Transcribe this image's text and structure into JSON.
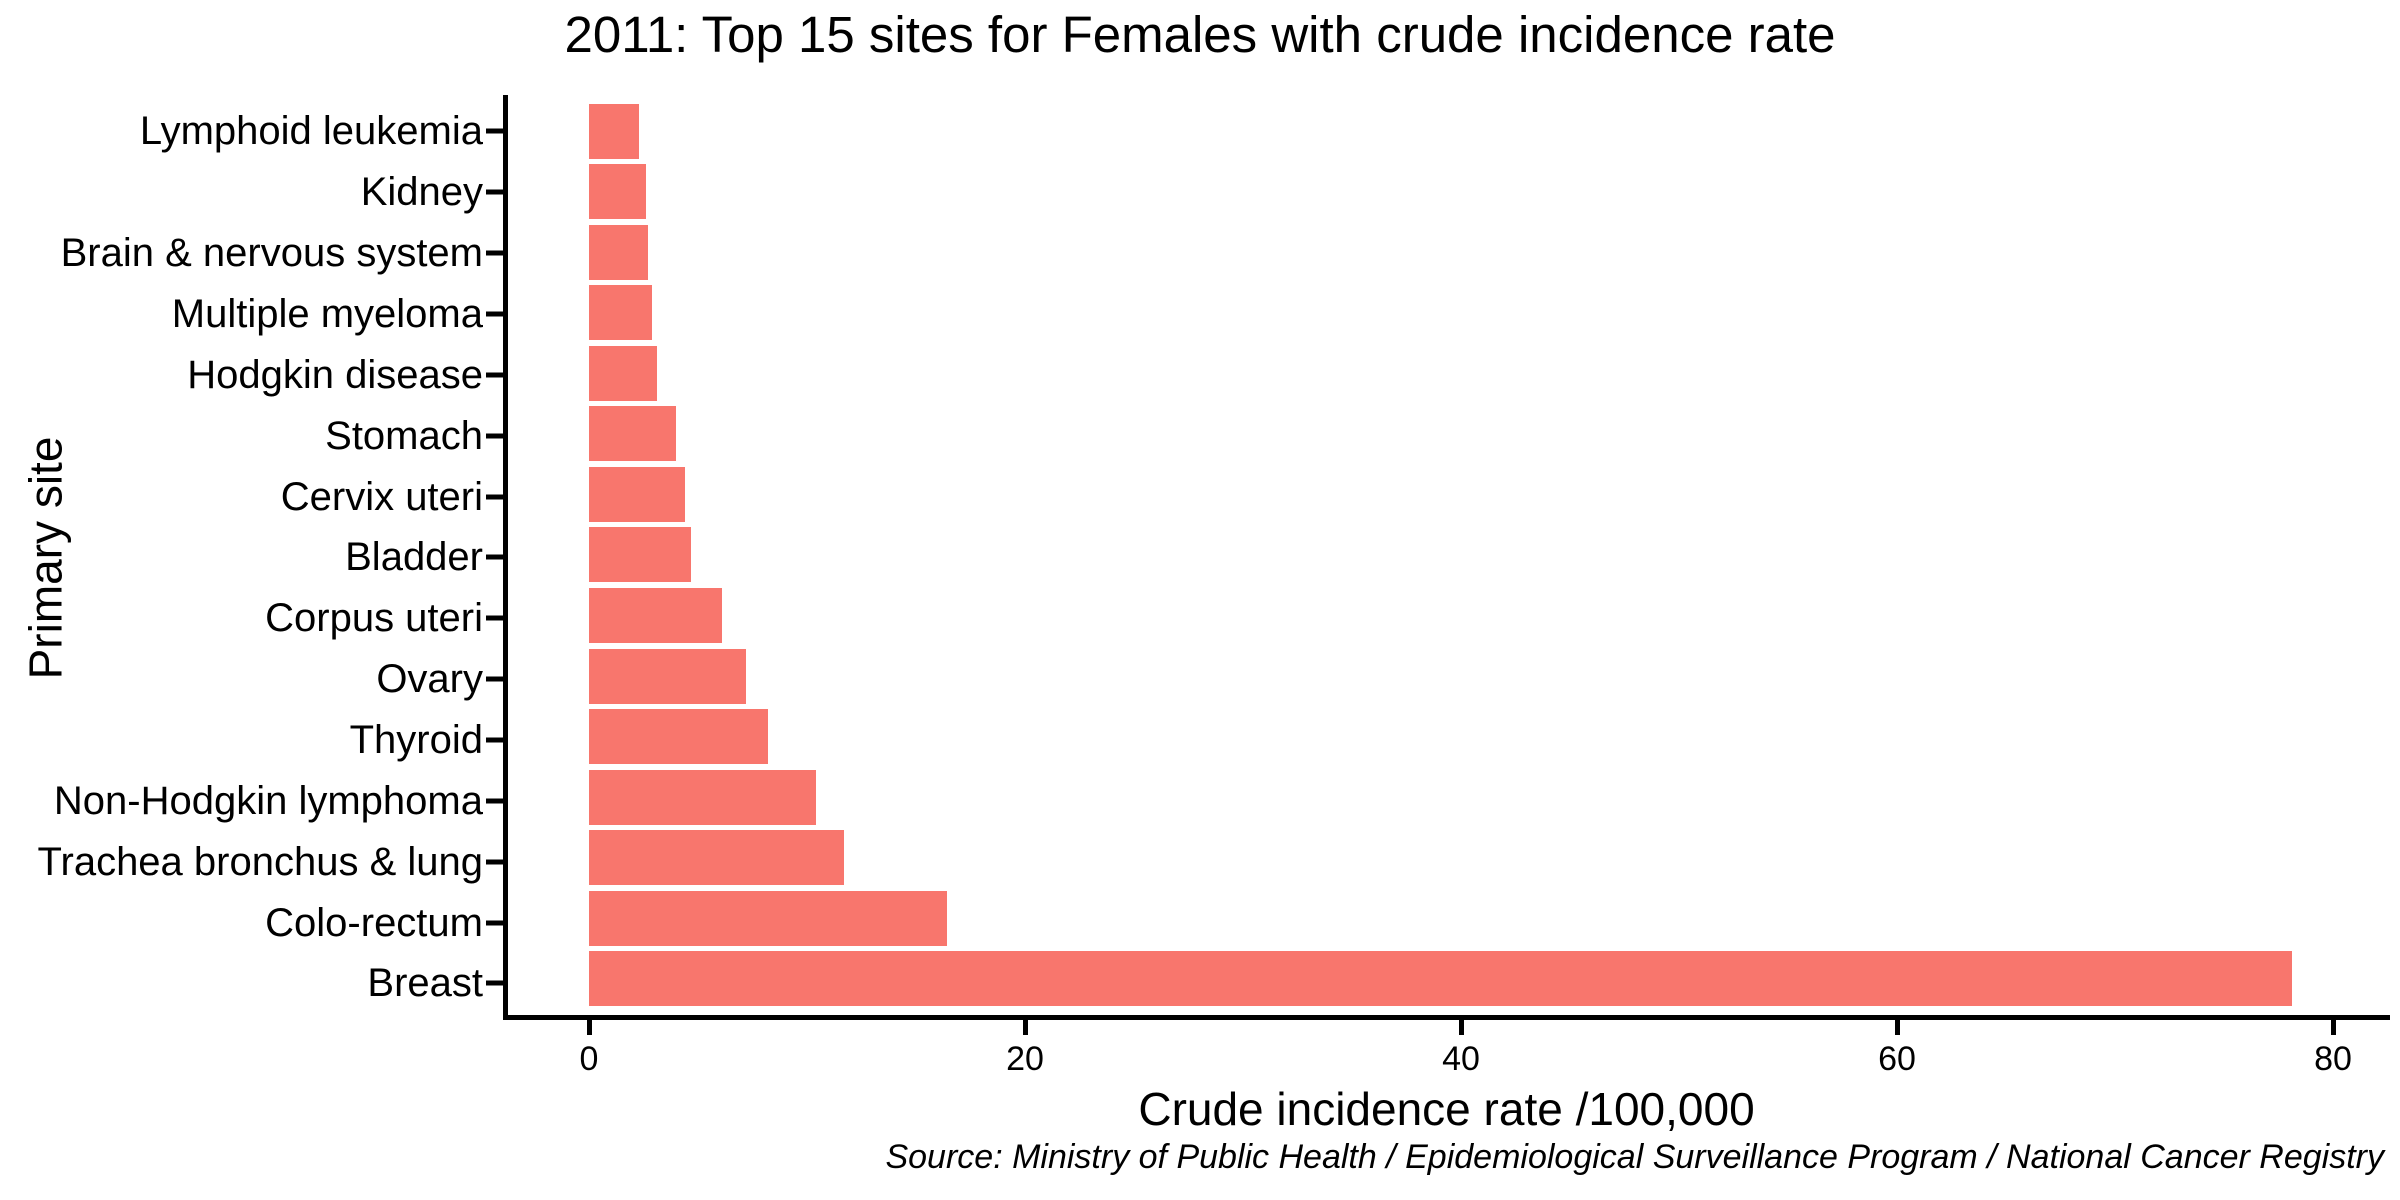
{
  "chart_data": {
    "type": "bar",
    "orientation": "horizontal",
    "title": "2011: Top 15 sites for Females with crude incidence rate",
    "xlabel": "Crude incidence rate /100,000",
    "ylabel": "Primary site",
    "categories": [
      "Lymphoid leukemia",
      "Kidney",
      "Brain & nervous system",
      "Multiple myeloma",
      "Hodgkin disease",
      "Stomach",
      "Cervix uteri",
      "Bladder",
      "Corpus uteri",
      "Ovary",
      "Thyroid",
      "Non-Hodgkin lymphoma",
      "Trachea bronchus & lung",
      "Colo-rectum",
      "Breast"
    ],
    "values": [
      2.3,
      2.6,
      2.7,
      2.9,
      3.1,
      4.0,
      4.4,
      4.7,
      6.1,
      7.2,
      8.2,
      10.4,
      11.7,
      16.4,
      78.1
    ],
    "xticks": [
      "0",
      "20",
      "40",
      "60",
      "80"
    ],
    "xlim": [
      0,
      80
    ],
    "bar_color": "#F8766D",
    "axis_color": "#000000",
    "background": "#FFFFFF",
    "grid": false,
    "legend": "none"
  },
  "source_note": "Source: Ministry of Public Health / Epidemiological Surveillance Program / National Cancer Registry"
}
